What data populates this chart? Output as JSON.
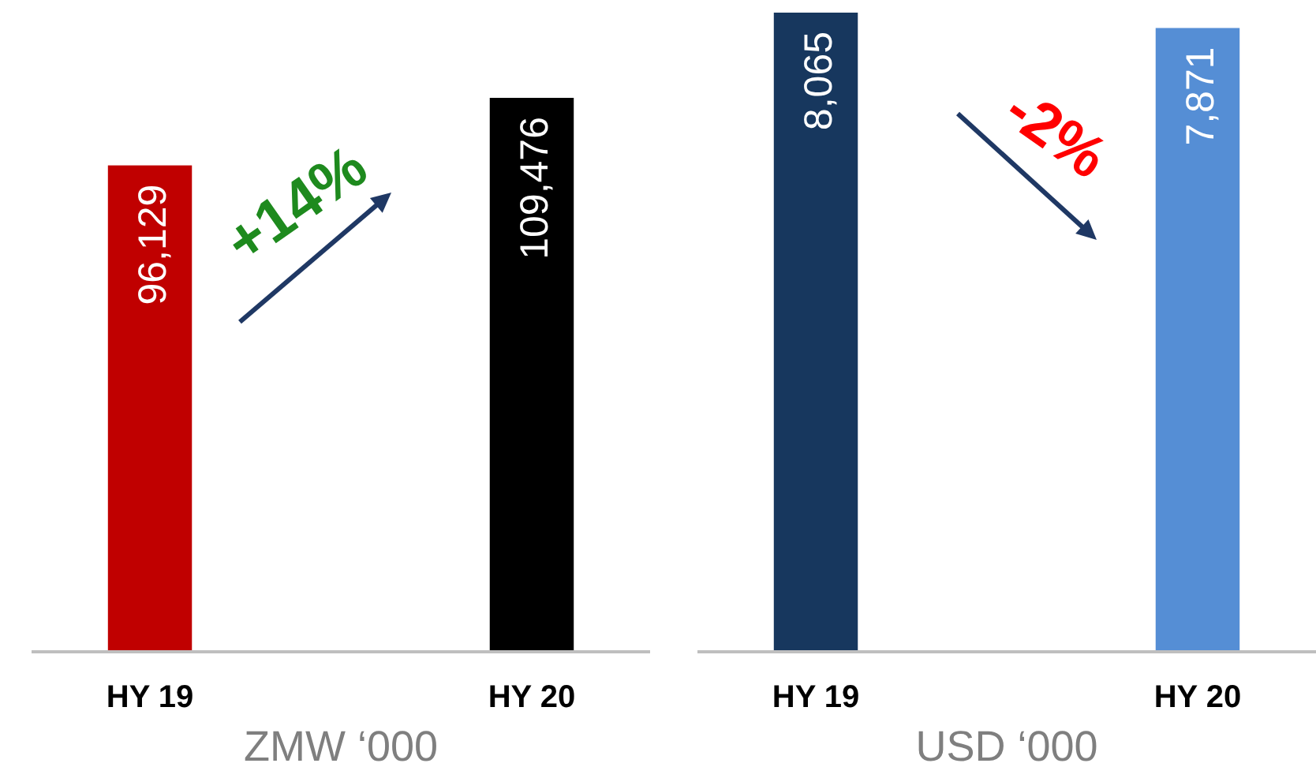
{
  "chart_data": [
    {
      "type": "bar",
      "categories": [
        "HY 19",
        "HY 20"
      ],
      "colors": [
        "#c00000",
        "#000000"
      ],
      "values": [
        96129,
        109476
      ],
      "value_labels": [
        "96,129",
        "109,476"
      ],
      "tick_labels": "x",
      "xlabel": "ZMW ‘000",
      "annotations": [
        "+14%"
      ]
    },
    {
      "type": "bar",
      "categories": [
        "HY 19",
        "HY 20"
      ],
      "colors": [
        "#17375e",
        "#558ed5"
      ],
      "values": [
        8065,
        7871
      ],
      "value_labels": [
        "8,065",
        "7,871"
      ],
      "tick_labels": "x",
      "xlabel": "USD ‘000",
      "annotations": [
        "-2%"
      ]
    }
  ]
}
